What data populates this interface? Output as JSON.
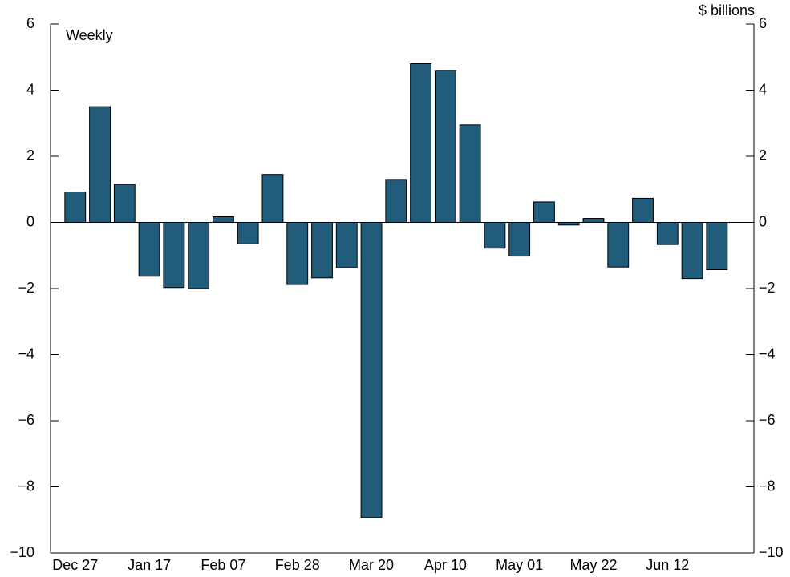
{
  "chart_data": {
    "type": "bar",
    "annotation": "Weekly",
    "y_unit_label": "$ billions",
    "categories": [
      "Dec 27",
      null,
      null,
      "Jan 17",
      null,
      null,
      "Feb 07",
      null,
      null,
      "Feb 28",
      null,
      null,
      "Mar 20",
      null,
      null,
      "Apr 10",
      null,
      null,
      "May 01",
      null,
      null,
      "May 22",
      null,
      null,
      "Jun 12",
      null,
      null
    ],
    "values": [
      0.92,
      3.5,
      1.15,
      -1.63,
      -1.97,
      -2.0,
      0.17,
      -0.65,
      1.45,
      -1.88,
      -1.68,
      -1.37,
      -8.93,
      1.3,
      4.8,
      4.6,
      2.95,
      -0.78,
      -1.02,
      0.62,
      -0.08,
      0.12,
      -1.35,
      0.73,
      -0.67,
      -1.7,
      -1.43
    ],
    "color": "#215d7a",
    "ylim": [
      -10,
      6
    ],
    "yticks": [
      {
        "value": -10,
        "label": "−10"
      },
      {
        "value": -8,
        "label": "−8"
      },
      {
        "value": -6,
        "label": "−6"
      },
      {
        "value": -4,
        "label": "−4"
      },
      {
        "value": -2,
        "label": "−2"
      },
      0,
      2,
      4,
      6
    ],
    "y2lim": [
      -10,
      6
    ],
    "y2ticks": [
      {
        "value": -10,
        "label": "−10"
      },
      {
        "value": -8,
        "label": "−8"
      },
      {
        "value": -6,
        "label": "−6"
      },
      {
        "value": -4,
        "label": "−4"
      },
      {
        "value": -2,
        "label": "−2"
      },
      0,
      2,
      4,
      6
    ]
  }
}
